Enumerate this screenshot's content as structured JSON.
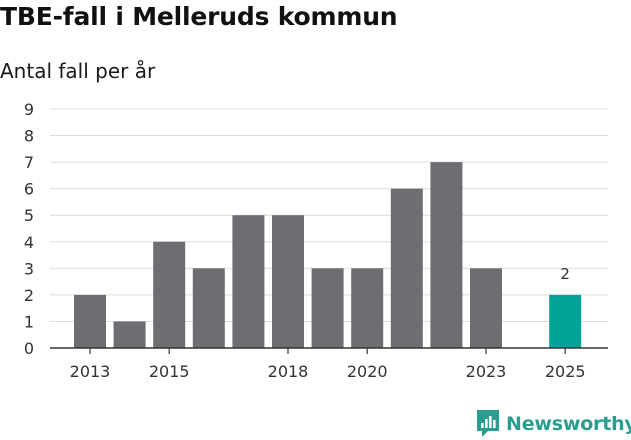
{
  "header": {
    "title": "TBE-fall i Melleruds kommun",
    "subtitle": "Antal fall per år"
  },
  "brand": {
    "name": "Newsworthy",
    "icon": "newsworthy-logo-icon",
    "color": "#2a9d8f"
  },
  "colors": {
    "bar": "#6e6d72",
    "highlight": "#00a398",
    "grid": "#dcdcdc",
    "axis": "#333333"
  },
  "chart_data": {
    "type": "bar",
    "title": "TBE-fall i Melleruds kommun",
    "subtitle": "Antal fall per år",
    "xlabel": "",
    "ylabel": "",
    "categories": [
      "2013",
      "2014",
      "2015",
      "2016",
      "2017",
      "2018",
      "2019",
      "2020",
      "2021",
      "2022",
      "2023",
      "2024",
      "2025"
    ],
    "values": [
      2,
      1,
      4,
      3,
      5,
      5,
      3,
      3,
      6,
      7,
      3,
      0,
      2
    ],
    "highlight": "2025",
    "data_labels": [
      {
        "category": "2025",
        "text": "2"
      }
    ],
    "x_tick_labels": [
      "2013",
      "2015",
      "2018",
      "2020",
      "2023",
      "2025"
    ],
    "y_ticks": [
      0,
      1,
      2,
      3,
      4,
      5,
      6,
      7,
      8,
      9
    ],
    "ylim": [
      0,
      9
    ],
    "grid": true,
    "legend": "none"
  }
}
